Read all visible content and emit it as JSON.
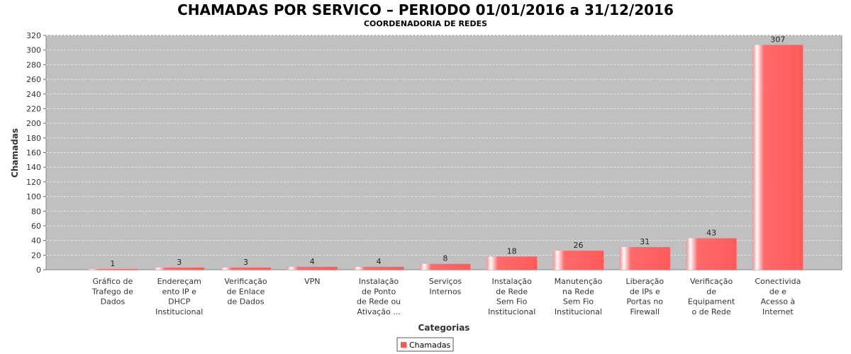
{
  "chart_data": {
    "type": "bar",
    "title": "CHAMADAS POR SERVICO – PERIODO 01/01/2016 a 31/12/2016",
    "subtitle": "COORDENADORIA DE REDES",
    "xlabel": "Categorias",
    "ylabel": "Chamadas",
    "ylim": [
      0,
      320
    ],
    "ytick_step": 20,
    "grid": true,
    "legend_position": "bottom",
    "categories": [
      [
        "Gráfico de",
        "Trafego de",
        "Dados"
      ],
      [
        "Endereçam",
        "ento IP e",
        "DHCP",
        "Institucional"
      ],
      [
        "Verificação",
        "de Enlace",
        "de Dados"
      ],
      [
        "VPN"
      ],
      [
        "Instalação",
        "de Ponto",
        "de Rede ou",
        "Ativação ..."
      ],
      [
        "Serviços",
        "Internos"
      ],
      [
        "Instalação",
        "de Rede",
        "Sem Fio",
        "Institucional"
      ],
      [
        "Manutenção",
        "na Rede",
        "Sem Fio",
        "Institucional"
      ],
      [
        "Liberação",
        "de IPs e",
        "Portas no",
        "Firewall"
      ],
      [
        "Verificação",
        "de",
        "Equipament",
        "o de Rede"
      ],
      [
        "Conectivida",
        "de e",
        "Acesso à",
        "Internet"
      ]
    ],
    "series": [
      {
        "name": "Chamadas",
        "color": "#ff6666",
        "values": [
          1,
          3,
          3,
          4,
          4,
          8,
          18,
          26,
          31,
          43,
          307
        ]
      }
    ],
    "plot_background": "#c0c0c0"
  }
}
